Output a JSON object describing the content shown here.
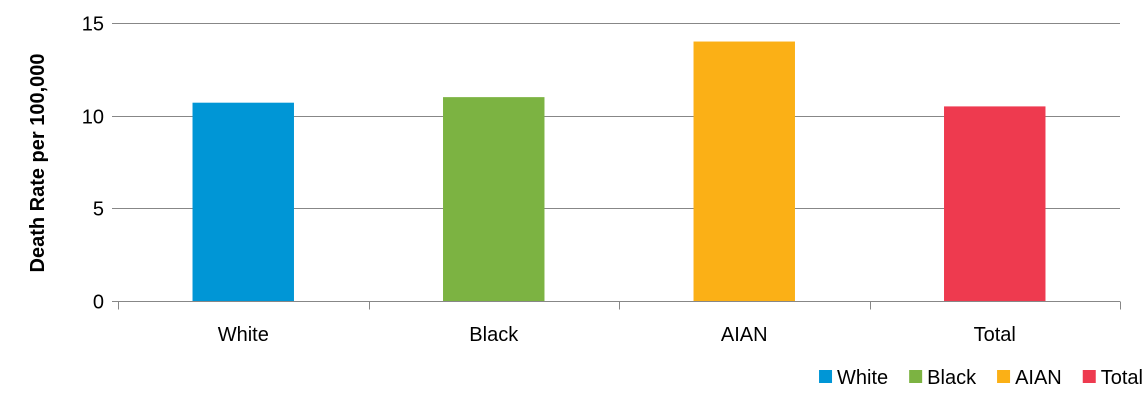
{
  "chart_data": {
    "type": "bar",
    "title": "",
    "xlabel": "",
    "ylabel": "Death Rate per 100,000",
    "categories": [
      "White",
      "Black",
      "AIAN",
      "Total"
    ],
    "values": [
      10.7,
      11.0,
      14.0,
      10.5
    ],
    "colors": [
      "#0096D6",
      "#7CB342",
      "#FBB016",
      "#EE3A4F"
    ],
    "ylim": [
      0,
      15
    ],
    "yticks": [
      0,
      5,
      10,
      15
    ],
    "grid": true,
    "legend": {
      "position": "bottom-right",
      "entries": [
        "White",
        "Black",
        "AIAN",
        "Total"
      ]
    }
  }
}
